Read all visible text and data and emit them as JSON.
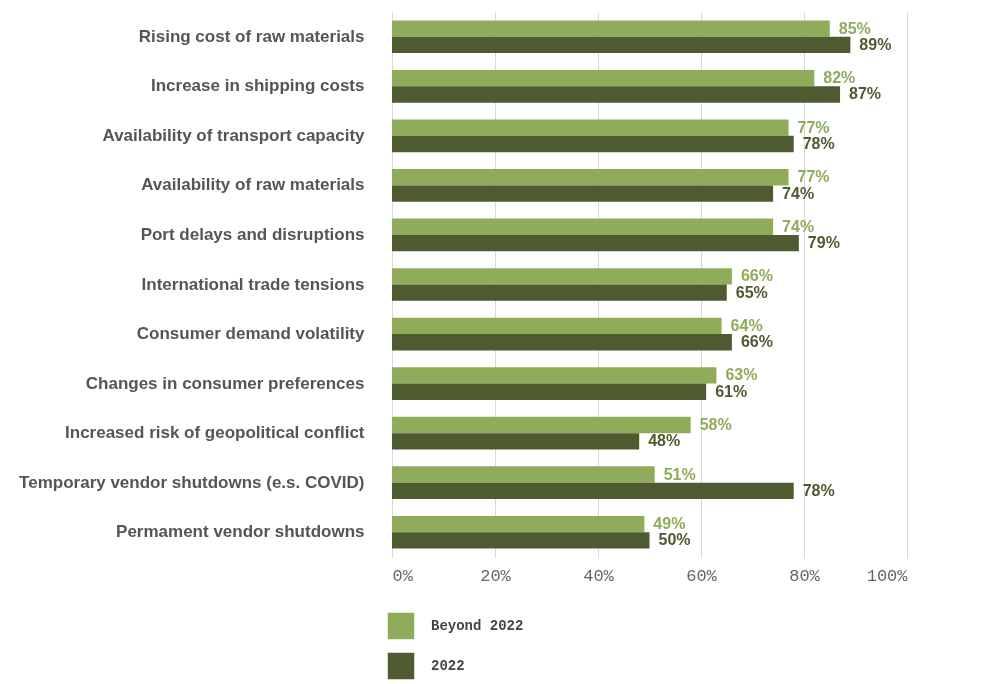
{
  "chart_data": {
    "type": "bar",
    "orientation": "horizontal",
    "categories": [
      "Rising cost of raw materials",
      "Increase in shipping costs",
      "Availability of transport capacity",
      "Availability of raw materials",
      "Port delays and disruptions",
      "International trade tensions",
      "Consumer demand volatility",
      "Changes in consumer preferences",
      "Increased risk of geopolitical conflict",
      "Temporary vendor shutdowns (e.s. COVID)",
      "Permament vendor shutdowns"
    ],
    "series": [
      {
        "name": "Beyond 2022",
        "color": "#8fac5a",
        "values": [
          85,
          82,
          77,
          77,
          74,
          66,
          64,
          63,
          58,
          51,
          49
        ],
        "value_labels": [
          "85%",
          "82%",
          "77%",
          "77%",
          "74%",
          "66%",
          "64%",
          "63%",
          "58%",
          "51%",
          "49%"
        ]
      },
      {
        "name": "2022",
        "color": "#4e5a30",
        "values": [
          89,
          87,
          78,
          74,
          79,
          65,
          66,
          61,
          48,
          78,
          50
        ],
        "value_labels": [
          "89%",
          "87%",
          "78%",
          "74%",
          "79%",
          "65%",
          "66%",
          "61%",
          "48%",
          "78%",
          "50%"
        ]
      }
    ],
    "xlim": [
      0,
      100
    ],
    "xticks": [
      {
        "value": 0,
        "label": "0%"
      },
      {
        "value": 20,
        "label": "20%"
      },
      {
        "value": 40,
        "label": "40%"
      },
      {
        "value": 60,
        "label": "60%"
      },
      {
        "value": 80,
        "label": "80%"
      },
      {
        "value": 100,
        "label": "100%"
      }
    ],
    "grid": "x",
    "legend": "bottom"
  }
}
